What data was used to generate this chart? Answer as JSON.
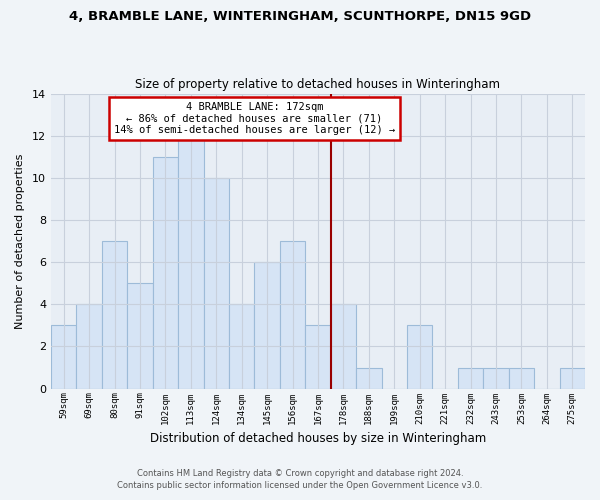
{
  "title": "4, BRAMBLE LANE, WINTERINGHAM, SCUNTHORPE, DN15 9GD",
  "subtitle": "Size of property relative to detached houses in Winteringham",
  "xlabel": "Distribution of detached houses by size in Winteringham",
  "ylabel": "Number of detached properties",
  "bar_labels": [
    "59sqm",
    "69sqm",
    "80sqm",
    "91sqm",
    "102sqm",
    "113sqm",
    "124sqm",
    "134sqm",
    "145sqm",
    "156sqm",
    "167sqm",
    "178sqm",
    "188sqm",
    "199sqm",
    "210sqm",
    "221sqm",
    "232sqm",
    "243sqm",
    "253sqm",
    "264sqm",
    "275sqm"
  ],
  "bar_values": [
    3,
    4,
    7,
    5,
    11,
    12,
    10,
    4,
    6,
    7,
    3,
    4,
    1,
    0,
    3,
    0,
    1,
    1,
    1,
    0,
    1
  ],
  "bar_color": "#d6e4f5",
  "bar_edge_color": "#9dbbd8",
  "vline_x": 10.5,
  "vline_color": "#990000",
  "annotation_title": "4 BRAMBLE LANE: 172sqm",
  "annotation_line1": "← 86% of detached houses are smaller (71)",
  "annotation_line2": "14% of semi-detached houses are larger (12) →",
  "annotation_box_facecolor": "#ffffff",
  "annotation_box_edgecolor": "#cc0000",
  "ylim": [
    0,
    14
  ],
  "yticks": [
    0,
    2,
    4,
    6,
    8,
    10,
    12,
    14
  ],
  "grid_color": "#c8d0dc",
  "bg_color": "#f0f4f8",
  "plot_bg_color": "#e8eef5",
  "footnote1": "Contains HM Land Registry data © Crown copyright and database right 2024.",
  "footnote2": "Contains public sector information licensed under the Open Government Licence v3.0."
}
